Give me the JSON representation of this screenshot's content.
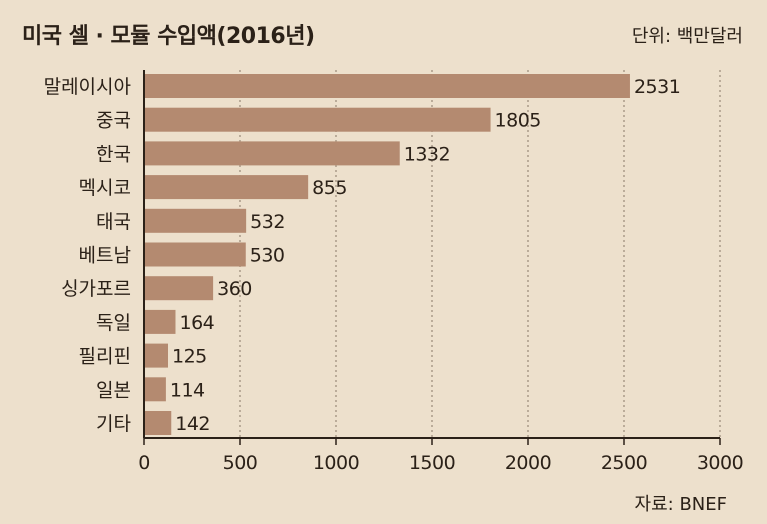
{
  "chart_data": {
    "type": "bar",
    "orientation": "horizontal",
    "title": "미국 셀 · 모듈 수입액(2016년)",
    "unit_label": "단위: 백만달러",
    "source": "자료: BNEF",
    "categories": [
      "말레이시아",
      "중국",
      "한국",
      "멕시코",
      "태국",
      "베트남",
      "싱가포르",
      "독일",
      "필리핀",
      "일본",
      "기타"
    ],
    "values": [
      2531,
      1805,
      1332,
      855,
      532,
      530,
      360,
      164,
      125,
      114,
      142
    ],
    "xlim": [
      0,
      3000
    ],
    "xticks": [
      0,
      500,
      1000,
      1500,
      2000,
      2500,
      3000
    ],
    "grid": "vertical-dotted",
    "colors": {
      "bar": "#b48a70",
      "background": "#ede0cc",
      "axis": "#2b2118",
      "grid": "#9a8a78"
    }
  }
}
